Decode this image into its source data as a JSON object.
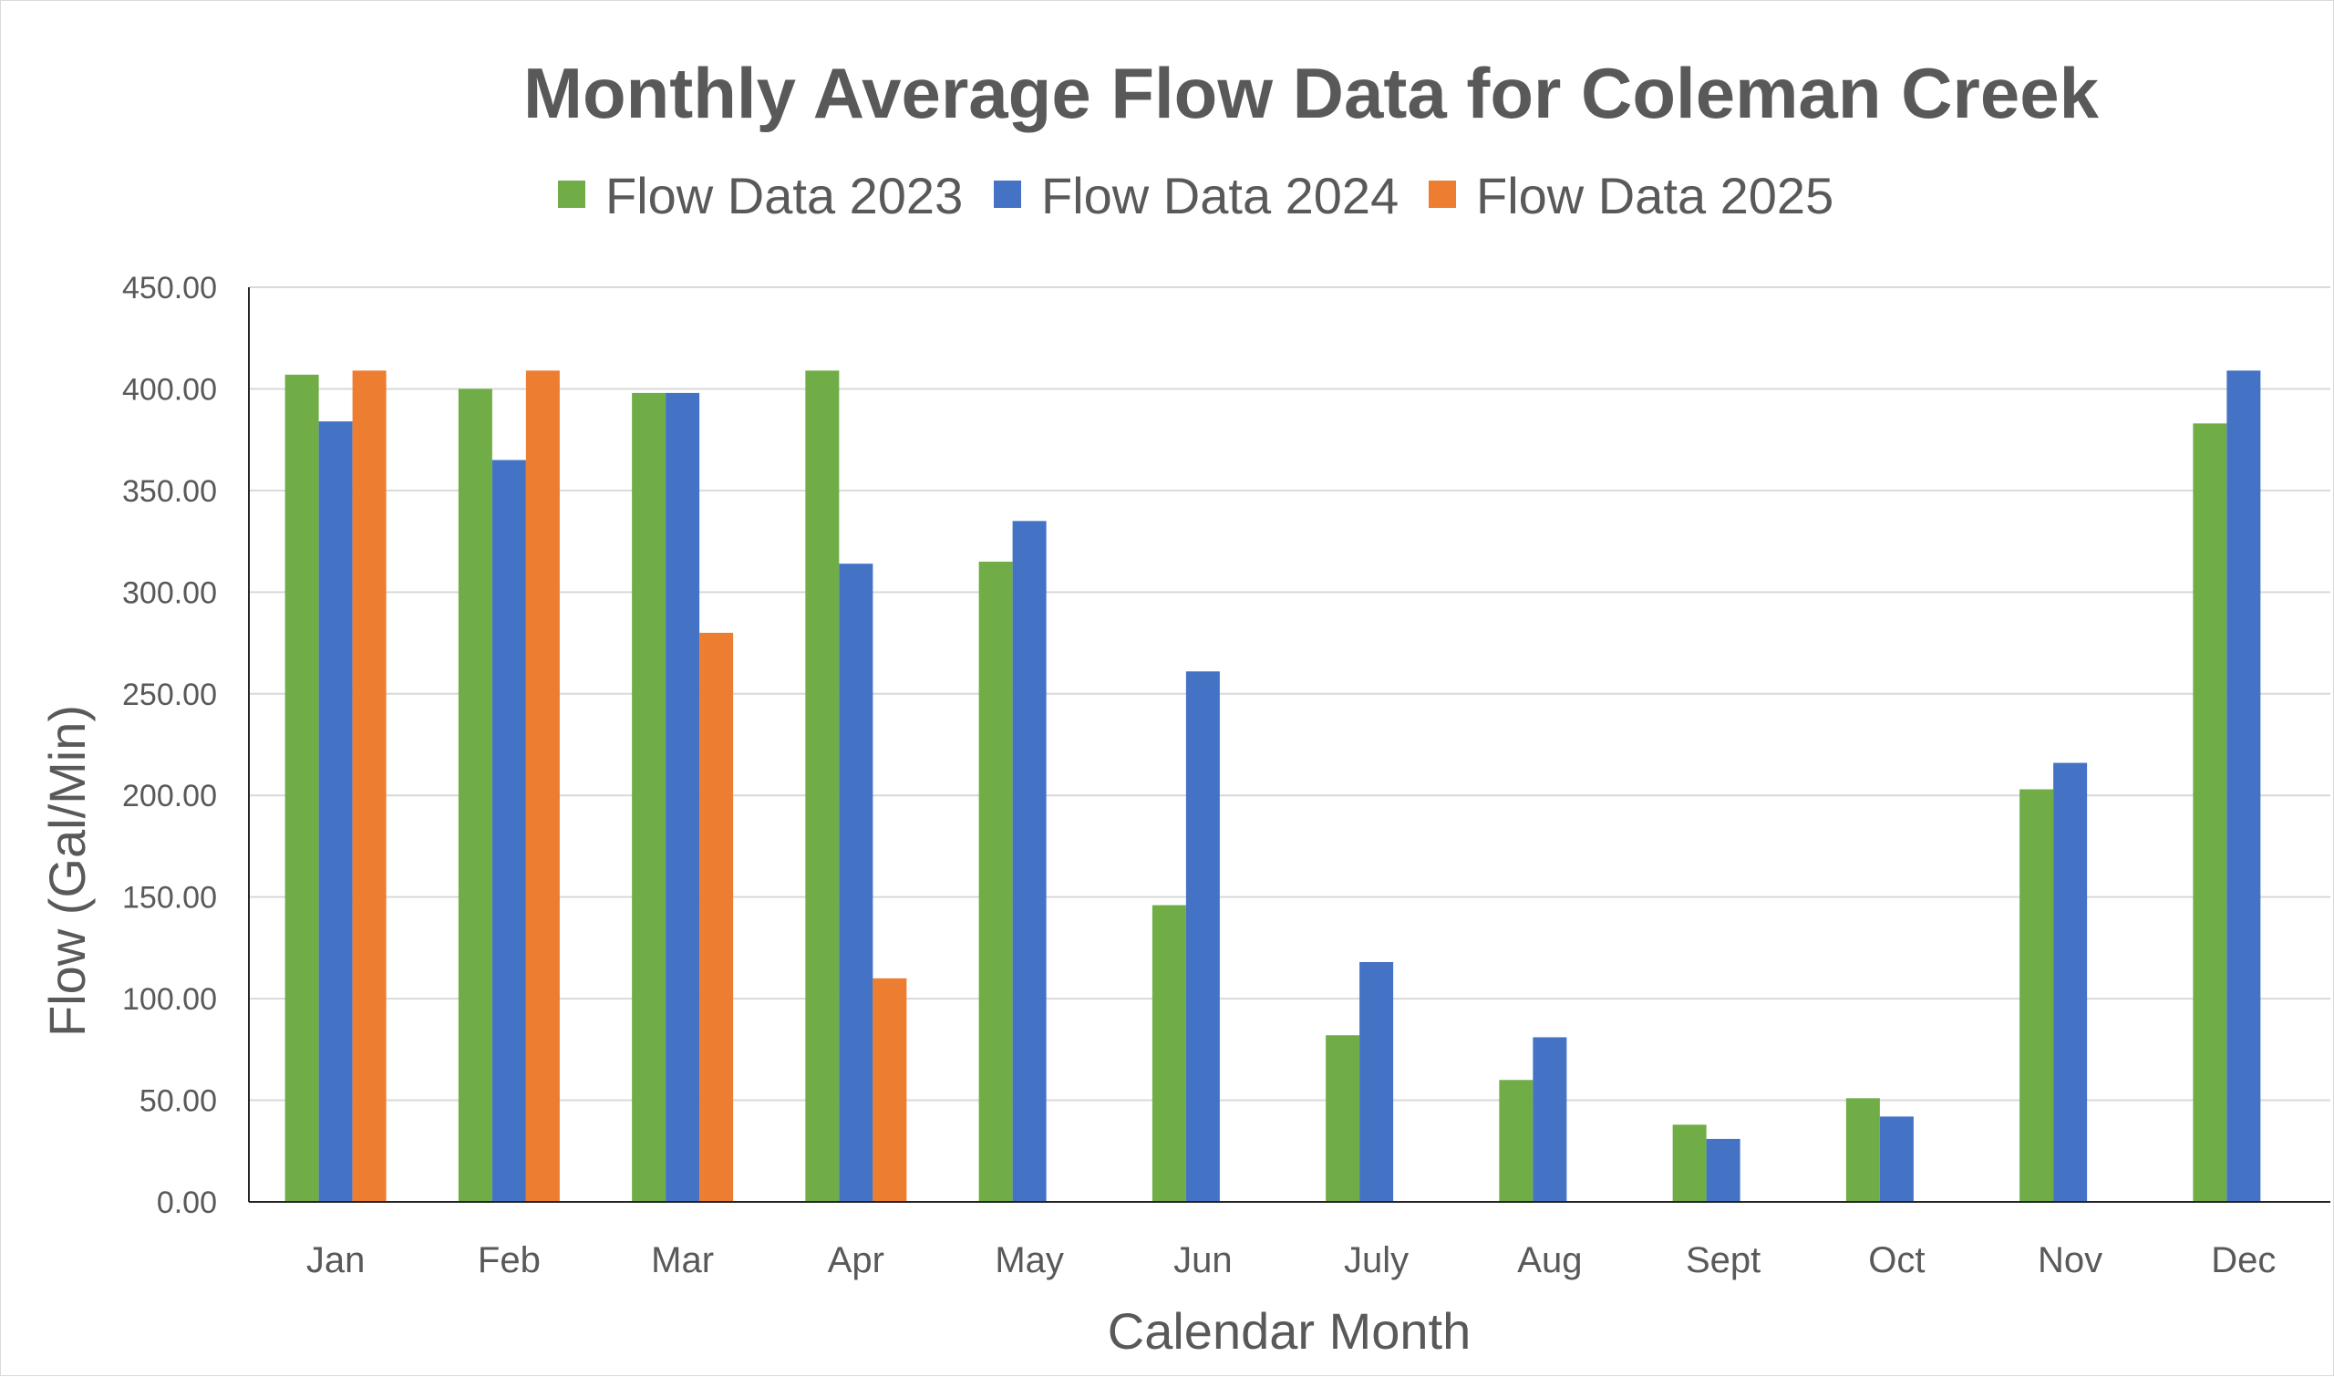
{
  "chart_data": {
    "type": "bar",
    "title": "Monthly Average Flow Data for Coleman Creek",
    "xlabel": "Calendar Month",
    "ylabel": "Flow (Gal/Min)",
    "ylim": [
      0,
      450
    ],
    "ytick_step": 50,
    "ytick_labels": [
      "0.00",
      "50.00",
      "100.00",
      "150.00",
      "200.00",
      "250.00",
      "300.00",
      "350.00",
      "400.00",
      "450.00"
    ],
    "grid": true,
    "legend_position": "top-center",
    "categories": [
      "Jan",
      "Feb",
      "Mar",
      "Apr",
      "May",
      "Jun",
      "July",
      "Aug",
      "Sept",
      "Oct",
      "Nov",
      "Dec"
    ],
    "series": [
      {
        "name": "Flow Data 2023",
        "color": "#70AD47",
        "values": [
          407,
          400,
          398,
          409,
          315,
          146,
          82,
          60,
          38,
          51,
          203,
          383
        ]
      },
      {
        "name": "Flow Data 2024",
        "color": "#4472C4",
        "values": [
          384,
          365,
          398,
          314,
          335,
          261,
          118,
          81,
          31,
          42,
          216,
          409
        ]
      },
      {
        "name": "Flow Data 2025",
        "color": "#ED7D31",
        "values": [
          409,
          409,
          280,
          110,
          null,
          null,
          null,
          null,
          null,
          null,
          null,
          null
        ]
      }
    ]
  }
}
